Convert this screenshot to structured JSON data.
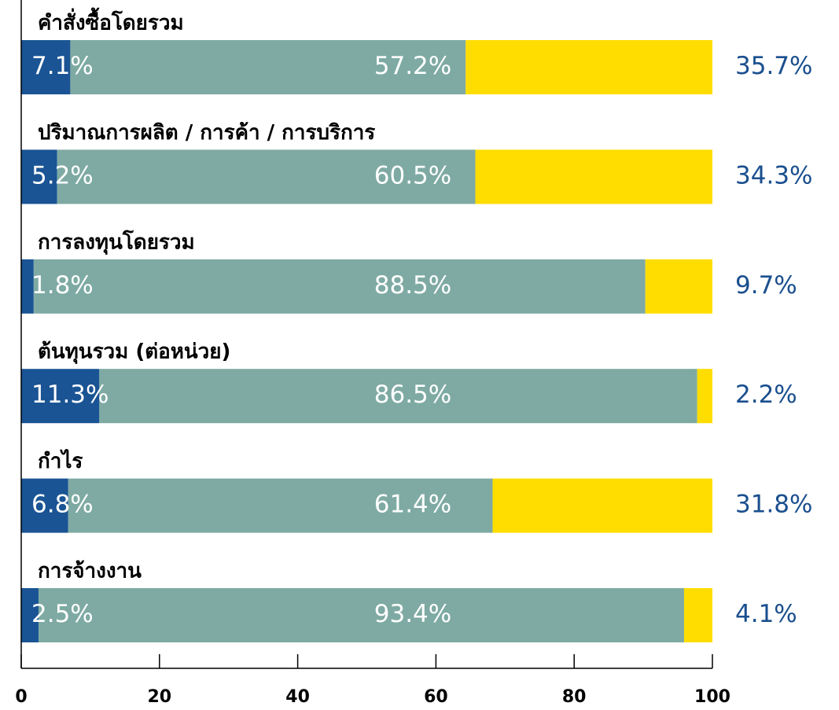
{
  "chart_data": {
    "type": "stacked-bar-horizontal",
    "categories": [
      "คำสั่งซื้อโดยรวม",
      "ปริมาณการผลิต / การค้า / การบริการ",
      "การลงทุนโดยรวม",
      "ต้นทุนรวม (ต่อหน่วย)",
      "กำไร",
      "การจ้างงาน"
    ],
    "series": [
      {
        "color": "#1a5494",
        "values": [
          7.1,
          5.2,
          1.8,
          11.3,
          6.8,
          2.5
        ],
        "value_labels": [
          "7.1%",
          "5.2%",
          "1.8%",
          "11.3%",
          "6.8%",
          "2.5%"
        ]
      },
      {
        "color": "#7eaaa3",
        "values": [
          57.2,
          60.5,
          88.5,
          86.5,
          61.4,
          93.4
        ],
        "value_labels": [
          "57.2%",
          "60.5%",
          "88.5%",
          "86.5%",
          "61.4%",
          "93.4%"
        ]
      },
      {
        "color": "#ffdd00",
        "values": [
          35.7,
          34.3,
          9.7,
          2.2,
          31.8,
          4.1
        ],
        "value_labels": [
          "35.7%",
          "34.3%",
          "9.7%",
          "2.2%",
          "31.8%",
          "4.1%"
        ]
      }
    ],
    "xlim": [
      0,
      100
    ],
    "xticks": [
      0,
      20,
      40,
      60,
      80,
      100
    ]
  }
}
